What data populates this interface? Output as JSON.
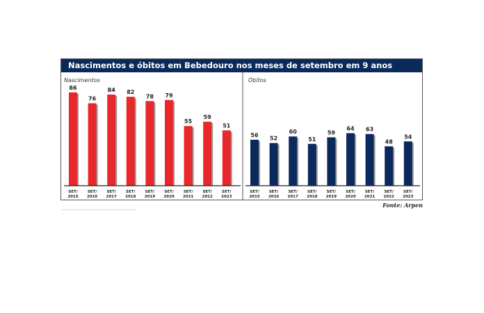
{
  "title": "Nascimentos e óbitos em Bebedouro nos meses de setembro em 9 anos",
  "source": "Fonte: Arpen",
  "chart_data": [
    {
      "type": "bar",
      "title": "Nascimentos",
      "categories": [
        "SET/ 2015",
        "SET/ 2016",
        "SET/ 2017",
        "SET/ 2018",
        "SET/ 2019",
        "SET/ 2020",
        "SET/ 2021",
        "SET/ 2022",
        "SET/ 2023"
      ],
      "values": [
        86,
        76,
        84,
        82,
        78,
        79,
        55,
        59,
        51
      ],
      "color": "#e8282b",
      "ylim": [
        0,
        90
      ],
      "grid": false
    },
    {
      "type": "bar",
      "title": "Óbitos",
      "categories": [
        "SET/ 2015",
        "SET/ 2016",
        "SET/ 2017",
        "SET/ 2018",
        "SET/ 2019",
        "SET/ 2020",
        "SET/ 2021",
        "SET/ 2022",
        "SET/ 2023"
      ],
      "values": [
        56,
        52,
        60,
        51,
        59,
        64,
        63,
        48,
        54
      ],
      "color": "#0b2a5c",
      "ylim": [
        0,
        115
      ],
      "grid": false
    }
  ]
}
